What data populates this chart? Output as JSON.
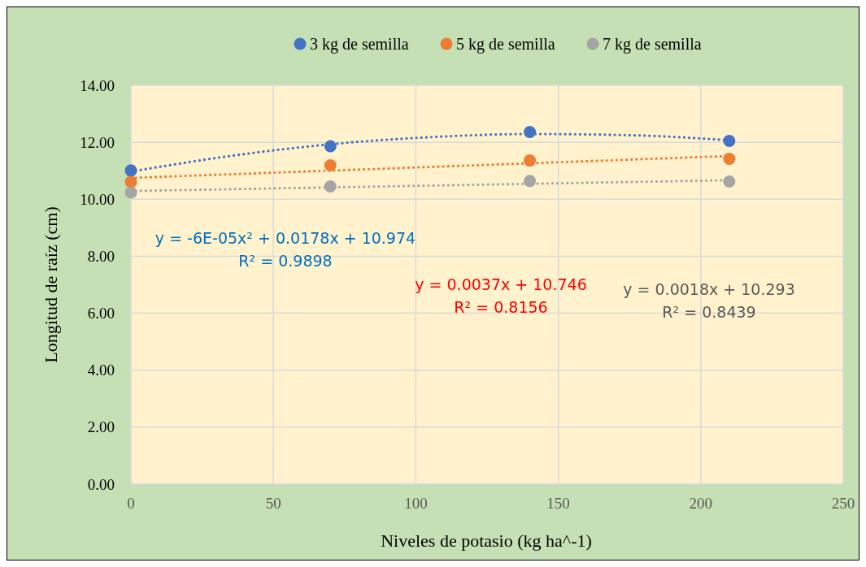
{
  "chart_data": {
    "type": "scatter",
    "xlabel": "Niveles de potasio (kg ha^-1)",
    "ylabel": "Longitud de raíz (cm)",
    "x": [
      0,
      70,
      140,
      210
    ],
    "series": [
      {
        "name": "3 kg de semilla",
        "color": "#4472c4",
        "values": [
          11.01,
          11.86,
          12.36,
          12.05
        ]
      },
      {
        "name": "5 kg de semilla",
        "color": "#ed7d31",
        "values": [
          10.61,
          11.19,
          11.36,
          11.42
        ]
      },
      {
        "name": "7 kg de semilla",
        "color": "#a5a5a5",
        "values": [
          10.24,
          10.45,
          10.64,
          10.62
        ]
      },
      {
        "type": "line",
        "color": "#4472c4",
        "line_style": "dotted",
        "marker": "none",
        "x": [
          0,
          35,
          70,
          105,
          140,
          175,
          210
        ],
        "values": [
          10.97,
          11.52,
          11.93,
          12.18,
          12.29,
          12.25,
          12.07
        ]
      },
      {
        "type": "line",
        "color": "#ed7d31",
        "line_style": "dotted",
        "marker": "none",
        "x": [
          0,
          210
        ],
        "values": [
          10.75,
          11.52
        ]
      },
      {
        "type": "line",
        "color": "#a5a5a5",
        "line_style": "dotted",
        "marker": "none",
        "x": [
          0,
          210
        ],
        "values": [
          10.29,
          10.67
        ]
      }
    ],
    "annotations": [
      "y = -6E-05x² + 0.0178x + 10.974",
      "R² = 0.9898",
      "y = 0.0037x + 10.746",
      "R² = 0.8156",
      "y = 0.0018x + 10.293",
      "R² = 0.8439"
    ],
    "xlim": [
      0,
      250
    ],
    "xticks": [
      0,
      50,
      100,
      150,
      200,
      250
    ],
    "ylim": [
      0,
      14
    ],
    "yticks": [
      {
        "value": 0,
        "label": "0.00"
      },
      {
        "value": 2,
        "label": "2.00"
      },
      {
        "value": 4,
        "label": "4.00"
      },
      {
        "value": 6,
        "label": "6.00"
      },
      {
        "value": 8,
        "label": "8.00"
      },
      {
        "value": 10,
        "label": "10.00"
      },
      {
        "value": 12,
        "label": "12.00"
      },
      {
        "value": 14,
        "label": "14.00"
      }
    ],
    "grid": true,
    "legend": "top",
    "marker": "circle"
  }
}
